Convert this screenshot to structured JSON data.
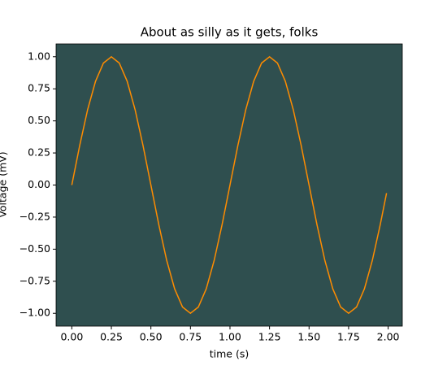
{
  "chart_data": {
    "type": "line",
    "title": "About as silly as it gets, folks",
    "x_label": "time (s)",
    "y_label": "Voltage (mV)",
    "x": [
      0,
      0.05,
      0.1,
      0.15,
      0.2,
      0.25,
      0.3,
      0.35,
      0.4,
      0.45,
      0.5,
      0.55,
      0.6,
      0.65,
      0.7,
      0.75,
      0.8,
      0.85,
      0.9,
      0.95,
      1.0,
      1.05,
      1.1,
      1.15,
      1.2,
      1.25,
      1.3,
      1.35,
      1.4,
      1.45,
      1.5,
      1.55,
      1.6,
      1.65,
      1.7,
      1.75,
      1.8,
      1.85,
      1.9,
      1.95,
      1.99
    ],
    "series": [
      {
        "color": "#ff8c00",
        "values": [
          0,
          0.309,
          0.588,
          0.809,
          0.951,
          1,
          0.951,
          0.809,
          0.588,
          0.309,
          0,
          -0.309,
          -0.588,
          -0.809,
          -0.951,
          -1,
          -0.951,
          -0.809,
          -0.588,
          -0.309,
          0,
          0.309,
          0.588,
          0.809,
          0.951,
          1,
          0.951,
          0.809,
          0.588,
          0.309,
          0,
          -0.309,
          -0.588,
          -0.809,
          -0.951,
          -1,
          -0.951,
          -0.809,
          -0.588,
          -0.309,
          -0.063
        ]
      }
    ],
    "xlim": [
      -0.0995,
      2.0895
    ],
    "ylim": [
      -1.1,
      1.1
    ],
    "xticks": [
      {
        "value": 0,
        "label": "0.00"
      },
      {
        "value": 0.25,
        "label": "0.25"
      },
      {
        "value": 0.5,
        "label": "0.50"
      },
      {
        "value": 0.75,
        "label": "0.75"
      },
      {
        "value": 1,
        "label": "1.00"
      },
      {
        "value": 1.25,
        "label": "1.25"
      },
      {
        "value": 1.5,
        "label": "1.50"
      },
      {
        "value": 1.75,
        "label": "1.75"
      },
      {
        "value": 2,
        "label": "2.00"
      }
    ],
    "yticks": [
      {
        "value": -1,
        "label": "−1.00"
      },
      {
        "value": -0.75,
        "label": "−0.75"
      },
      {
        "value": -0.5,
        "label": "−0.50"
      },
      {
        "value": -0.25,
        "label": "−0.25"
      },
      {
        "value": 0,
        "label": "0.00"
      },
      {
        "value": 0.25,
        "label": "0.25"
      },
      {
        "value": 0.5,
        "label": "0.50"
      },
      {
        "value": 0.75,
        "label": "0.75"
      },
      {
        "value": 1,
        "label": "1.00"
      }
    ],
    "plot_background": "#2f4f4f",
    "title_color": "#afeeee",
    "x_label_color": "#ff8c00",
    "y_label_color": "#999999"
  }
}
